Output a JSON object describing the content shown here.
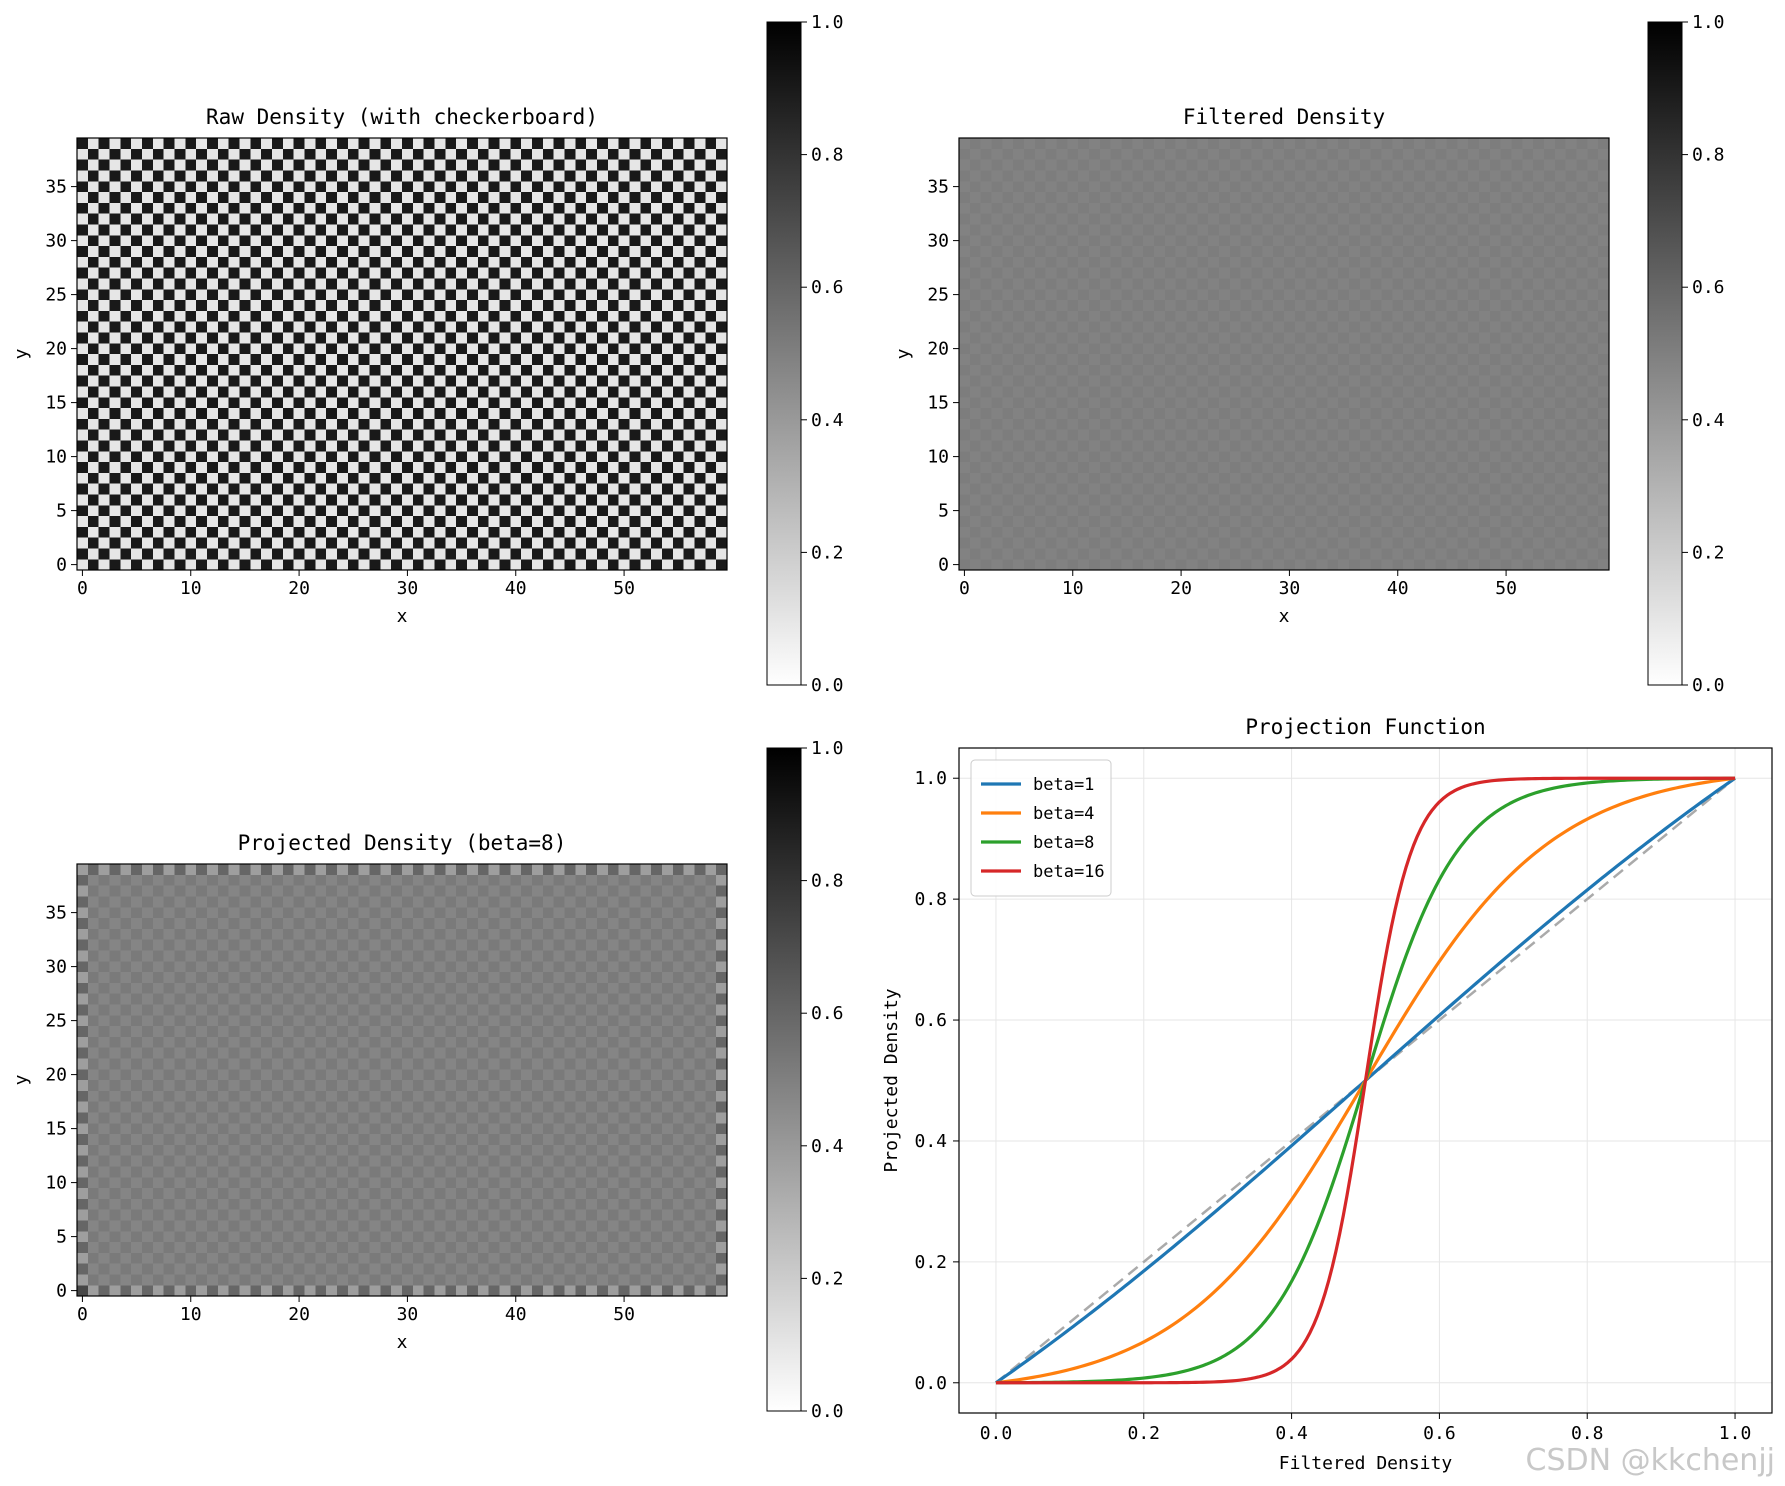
{
  "chart_data": [
    {
      "type": "heatmap",
      "title": "Raw Density (with checkerboard)",
      "xlabel": "x",
      "ylabel": "y",
      "xlim": [
        -0.5,
        59.5
      ],
      "ylim": [
        -0.5,
        39.5
      ],
      "x_ticks": [
        0,
        10,
        20,
        30,
        40,
        50
      ],
      "y_ticks": [
        0,
        5,
        10,
        15,
        20,
        25,
        30,
        35
      ],
      "grid_shape": [
        40,
        60
      ],
      "pattern": "checkerboard",
      "cell_values": {
        "even": 0.1,
        "odd": 0.9
      },
      "colormap": "gray_r",
      "colorbar": {
        "range": [
          0.0,
          1.0
        ],
        "ticks": [
          "0.0",
          "0.2",
          "0.4",
          "0.6",
          "0.8",
          "1.0"
        ]
      }
    },
    {
      "type": "heatmap",
      "title": "Filtered Density",
      "xlabel": "x",
      "ylabel": "y",
      "xlim": [
        -0.5,
        59.5
      ],
      "ylim": [
        -0.5,
        39.5
      ],
      "x_ticks": [
        0,
        10,
        20,
        30,
        40,
        50
      ],
      "y_ticks": [
        0,
        5,
        10,
        15,
        20,
        25,
        30,
        35
      ],
      "grid_shape": [
        40,
        60
      ],
      "pattern": "near-uniform",
      "cell_values": {
        "interior": 0.5,
        "interior_variation": 0.01
      },
      "colormap": "gray_r",
      "colorbar": {
        "range": [
          0.0,
          1.0
        ],
        "ticks": [
          "0.0",
          "0.2",
          "0.4",
          "0.6",
          "0.8",
          "1.0"
        ]
      }
    },
    {
      "type": "heatmap",
      "title": "Projected Density (beta=8)",
      "xlabel": "x",
      "ylabel": "y",
      "xlim": [
        -0.5,
        59.5
      ],
      "ylim": [
        -0.5,
        39.5
      ],
      "x_ticks": [
        0,
        10,
        20,
        30,
        40,
        50
      ],
      "y_ticks": [
        0,
        5,
        10,
        15,
        20,
        25,
        30,
        35
      ],
      "grid_shape": [
        40,
        60
      ],
      "pattern": "near-uniform with checkered border",
      "cell_values": {
        "interior": 0.5,
        "interior_variation": 0.02,
        "border_low": 0.38,
        "border_high": 0.6,
        "corner_bottom_left": 0.72
      },
      "colormap": "gray_r",
      "colorbar": {
        "range": [
          0.0,
          1.0
        ],
        "ticks": [
          "0.0",
          "0.2",
          "0.4",
          "0.6",
          "0.8",
          "1.0"
        ]
      }
    },
    {
      "type": "line",
      "title": "Projection Function",
      "xlabel": "Filtered Density",
      "ylabel": "Projected Density",
      "xlim": [
        -0.05,
        1.05
      ],
      "ylim": [
        -0.05,
        1.05
      ],
      "x_ticks": [
        "0.0",
        "0.2",
        "0.4",
        "0.6",
        "0.8",
        "1.0"
      ],
      "y_ticks": [
        "0.0",
        "0.2",
        "0.4",
        "0.6",
        "0.8",
        "1.0"
      ],
      "grid": true,
      "legend_position": "upper left",
      "eta": 0.5,
      "x": [
        0.0,
        0.05,
        0.1,
        0.15,
        0.2,
        0.25,
        0.3,
        0.35,
        0.4,
        0.45,
        0.5,
        0.55,
        0.6,
        0.65,
        0.7,
        0.75,
        0.8,
        0.85,
        0.9,
        0.95,
        1.0
      ],
      "series": [
        {
          "name": "beta=1",
          "beta": 1,
          "color": "#1f77b4",
          "values": [
            0.0,
            0.046,
            0.092,
            0.139,
            0.186,
            0.234,
            0.282,
            0.33,
            0.38,
            0.429,
            0.5,
            0.571,
            0.62,
            0.67,
            0.718,
            0.766,
            0.814,
            0.861,
            0.908,
            0.954,
            1.0
          ]
        },
        {
          "name": "beta=4",
          "beta": 4,
          "color": "#ff7f0e",
          "values": [
            0.0,
            0.018,
            0.039,
            0.061,
            0.087,
            0.117,
            0.153,
            0.197,
            0.254,
            0.332,
            0.5,
            0.668,
            0.746,
            0.803,
            0.847,
            0.883,
            0.913,
            0.939,
            0.961,
            0.982,
            1.0
          ]
        },
        {
          "name": "beta=8",
          "beta": 8,
          "color": "#2ca02c",
          "values": [
            0.0,
            0.0014,
            0.0033,
            0.0062,
            0.0106,
            0.0178,
            0.0299,
            0.0509,
            0.0891,
            0.163,
            0.5,
            0.837,
            0.911,
            0.949,
            0.97,
            0.982,
            0.989,
            0.994,
            0.997,
            0.999,
            1.0
          ]
        },
        {
          "name": "beta=16",
          "beta": 16,
          "color": "#d62728",
          "values": [
            0.0,
            0.0,
            0.0,
            0.0,
            0.0,
            0.0,
            0.0,
            0.0019,
            0.0118,
            0.0734,
            0.5,
            0.927,
            0.988,
            0.998,
            1.0,
            1.0,
            1.0,
            1.0,
            1.0,
            1.0,
            1.0
          ]
        }
      ],
      "reference_line": {
        "style": "dashed",
        "color": "#aaaaaa",
        "from": [
          0,
          0
        ],
        "to": [
          1,
          1
        ]
      }
    }
  ],
  "watermark": "CSDN @kkchenjj"
}
